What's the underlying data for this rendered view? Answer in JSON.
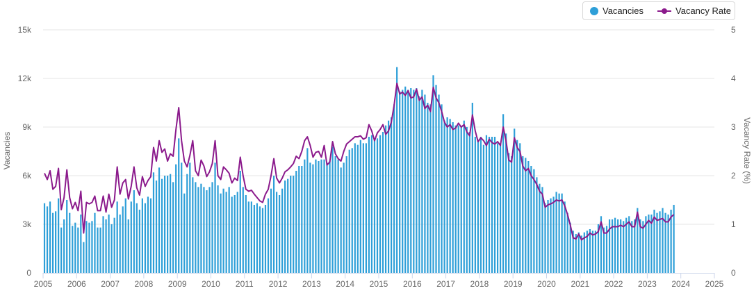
{
  "chart_data": {
    "type": "bar+line",
    "title": "",
    "xlabel": "",
    "ylabel_left": "Vacancies",
    "ylabel_right": "Vacancy Rate (%)",
    "ylim_left": [
      0,
      15000
    ],
    "ylim_right": [
      0,
      5
    ],
    "yticks_left": [
      "0",
      "3k",
      "6k",
      "9k",
      "12k",
      "15k"
    ],
    "yticks_right": [
      "0",
      "1",
      "2",
      "3",
      "4",
      "5"
    ],
    "xticks": [
      "2005",
      "2006",
      "2007",
      "2008",
      "2009",
      "2010",
      "2011",
      "2012",
      "2013",
      "2014",
      "2015",
      "2016",
      "2017",
      "2018",
      "2019",
      "2020",
      "2021",
      "2022",
      "2023",
      "2024",
      "2025"
    ],
    "x_start": "2005-01",
    "grid": true,
    "legend_position": "top-right",
    "colors": {
      "bars": "#2e9fd8",
      "bars_dark": "#1f88c4",
      "line": "#8b1a8c",
      "grid": "#e6e6e6",
      "axis": "#ccd6eb",
      "text": "#666666"
    },
    "series": [
      {
        "name": "Vacancies",
        "kind": "bar",
        "values": [
          4300,
          4100,
          4400,
          3700,
          3800,
          4600,
          2800,
          3300,
          4500,
          3700,
          2900,
          3100,
          2800,
          3600,
          1900,
          3200,
          3100,
          3200,
          3700,
          2800,
          2800,
          3500,
          3300,
          3600,
          3000,
          3400,
          4400,
          3600,
          4100,
          4600,
          3300,
          4400,
          5100,
          4300,
          3900,
          4600,
          4300,
          4700,
          4600,
          6200,
          5700,
          6500,
          5800,
          6000,
          6000,
          6100,
          5600,
          6700,
          8300,
          6800,
          4900,
          6100,
          6800,
          5900,
          5600,
          5300,
          5500,
          5300,
          5100,
          5300,
          5600,
          6800,
          5400,
          4900,
          5200,
          5000,
          5300,
          4700,
          4800,
          5000,
          6300,
          5300,
          4800,
          4400,
          4400,
          4200,
          4300,
          4100,
          4000,
          4200,
          4600,
          5200,
          6000,
          5000,
          4800,
          5200,
          5700,
          5800,
          6000,
          6000,
          6300,
          6600,
          6600,
          7000,
          7700,
          6800,
          6700,
          7000,
          6900,
          7000,
          7000,
          6800,
          6900,
          7800,
          7200,
          7000,
          6500,
          6800,
          7200,
          7600,
          7700,
          8000,
          7900,
          8200,
          8000,
          8000,
          8400,
          8500,
          8300,
          8300,
          8500,
          8700,
          9100,
          9400,
          9600,
          10400,
          12700,
          11200,
          11300,
          11500,
          11300,
          11400,
          11300,
          11400,
          10900,
          11300,
          11000,
          10500,
          10400,
          12200,
          11600,
          11000,
          10400,
          9400,
          9600,
          9500,
          9300,
          9100,
          9100,
          9000,
          9400,
          9000,
          8700,
          10500,
          8400,
          8200,
          8400,
          7900,
          8500,
          8400,
          8400,
          8400,
          8000,
          8000,
          9800,
          8600,
          7400,
          7200,
          8900,
          8200,
          8000,
          7200,
          7100,
          6900,
          6600,
          6400,
          5900,
          5500,
          5300,
          4300,
          4500,
          4600,
          4700,
          5000,
          4900,
          4900,
          4400,
          3700,
          3100,
          2600,
          2400,
          2500,
          2300,
          2500,
          2600,
          2700,
          2600,
          2600,
          3000,
          3500,
          2800,
          2900,
          3300,
          3300,
          3400,
          3300,
          3300,
          3200,
          3400,
          3500,
          3200,
          3300,
          4000,
          3300,
          3200,
          3500,
          3600,
          3600,
          3900,
          3700,
          3800,
          4000,
          3700,
          3600,
          3900,
          4200
        ]
      },
      {
        "name": "Vacancy Rate",
        "kind": "line",
        "values": [
          2.05,
          1.92,
          2.1,
          1.72,
          1.78,
          2.15,
          1.3,
          1.55,
          2.12,
          1.55,
          1.32,
          1.45,
          1.28,
          1.68,
          0.82,
          1.45,
          1.42,
          1.45,
          1.58,
          1.28,
          1.28,
          1.58,
          1.25,
          1.62,
          1.35,
          1.5,
          2.18,
          1.62,
          1.85,
          1.92,
          1.52,
          1.78,
          2.18,
          1.75,
          1.6,
          1.98,
          1.78,
          1.9,
          1.98,
          2.58,
          2.3,
          2.72,
          2.48,
          2.55,
          2.3,
          2.45,
          2.4,
          2.95,
          3.4,
          2.72,
          2.3,
          2.18,
          2.42,
          2.72,
          2.1,
          2.0,
          2.32,
          2.2,
          1.98,
          2.08,
          2.25,
          2.72,
          2.0,
          1.92,
          2.18,
          2.12,
          2.05,
          1.85,
          1.95,
          1.9,
          2.38,
          2.0,
          1.72,
          1.68,
          1.7,
          1.62,
          1.55,
          1.48,
          1.45,
          1.62,
          1.72,
          2.0,
          2.35,
          1.95,
          1.85,
          1.95,
          2.08,
          2.12,
          2.18,
          2.25,
          2.4,
          2.35,
          2.5,
          2.72,
          2.8,
          2.62,
          2.38,
          2.48,
          2.5,
          2.38,
          2.62,
          2.22,
          2.28,
          2.7,
          2.45,
          2.35,
          2.3,
          2.5,
          2.65,
          2.7,
          2.75,
          2.8,
          2.8,
          2.82,
          2.75,
          2.78,
          3.05,
          2.92,
          2.72,
          2.88,
          2.95,
          3.05,
          2.85,
          2.92,
          3.1,
          3.45,
          3.9,
          3.68,
          3.72,
          3.65,
          3.75,
          3.6,
          3.62,
          3.78,
          3.55,
          3.62,
          3.38,
          3.45,
          3.32,
          3.82,
          3.6,
          3.5,
          3.32,
          3.1,
          3.0,
          3.05,
          2.95,
          2.98,
          3.08,
          3.0,
          3.05,
          2.9,
          2.82,
          3.25,
          2.92,
          2.7,
          2.78,
          2.72,
          2.62,
          2.75,
          2.68,
          2.65,
          2.7,
          2.62,
          3.0,
          2.72,
          2.32,
          2.28,
          2.78,
          2.58,
          2.5,
          2.2,
          2.1,
          2.15,
          2.0,
          1.92,
          1.82,
          1.68,
          1.62,
          1.35,
          1.4,
          1.42,
          1.45,
          1.5,
          1.48,
          1.5,
          1.38,
          1.2,
          0.98,
          0.72,
          0.7,
          0.8,
          0.68,
          0.72,
          0.75,
          0.82,
          0.78,
          0.8,
          0.85,
          1.05,
          0.82,
          0.82,
          0.9,
          0.95,
          0.95,
          0.95,
          0.98,
          0.95,
          1.0,
          1.05,
          0.95,
          0.95,
          1.25,
          0.95,
          0.92,
          1.0,
          1.08,
          1.02,
          1.15,
          1.08,
          1.1,
          1.12,
          1.05,
          1.05,
          1.15,
          1.2
        ]
      }
    ]
  }
}
